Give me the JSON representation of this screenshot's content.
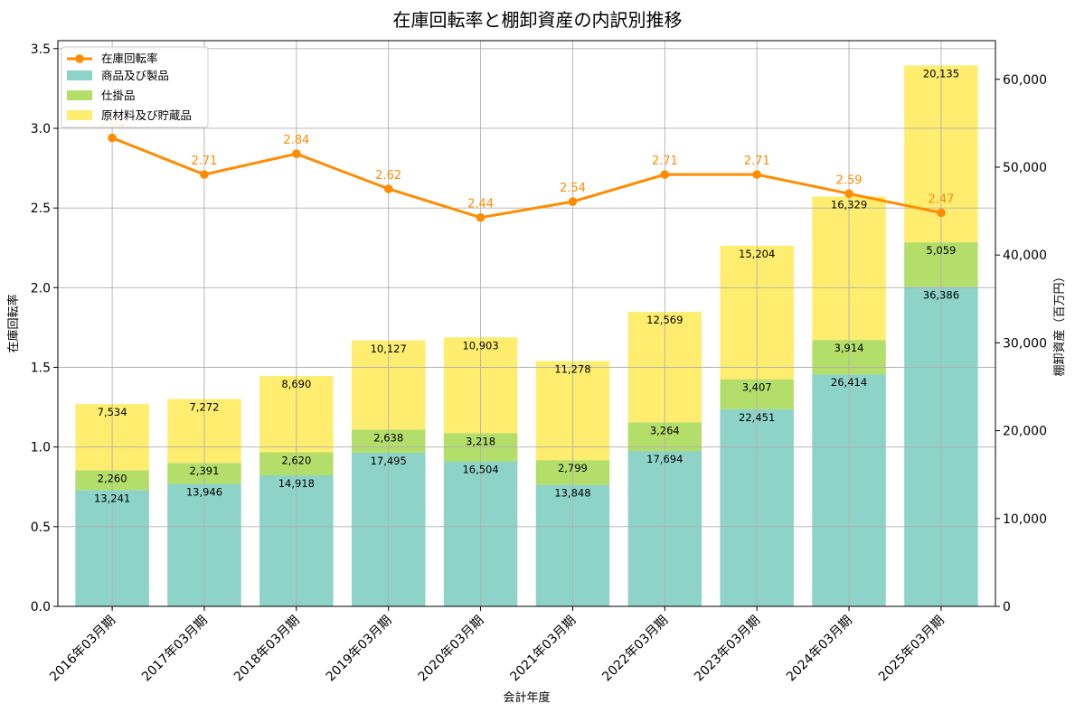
{
  "chart_data": {
    "type": "bar",
    "stacked": true,
    "title": "在庫回転率と棚卸資産の内訳別推移",
    "xlabel": "会計年度",
    "ylabel_left": "在庫回転率",
    "ylabel_right": "棚卸資産（百万円）",
    "categories": [
      "2016年03月期",
      "2017年03月期",
      "2018年03月期",
      "2019年03月期",
      "2020年03月期",
      "2021年03月期",
      "2022年03月期",
      "2023年03月期",
      "2024年03月期",
      "2025年03月期"
    ],
    "series": [
      {
        "name": "商品及び製品",
        "axis": "right",
        "color": "#8dd3c7",
        "values": [
          13241,
          13946,
          14918,
          17495,
          16504,
          13848,
          17694,
          22451,
          26414,
          36386
        ]
      },
      {
        "name": "仕掛品",
        "axis": "right",
        "color": "#b3de69",
        "values": [
          2260,
          2391,
          2620,
          2638,
          3218,
          2799,
          3264,
          3407,
          3914,
          5059
        ]
      },
      {
        "name": "原材料及び貯蔵品",
        "axis": "right",
        "color": "#ffed6f",
        "values": [
          7534,
          7272,
          8690,
          10127,
          10903,
          11278,
          12569,
          15204,
          16329,
          20135
        ]
      }
    ],
    "line": {
      "name": "在庫回転率",
      "axis": "left",
      "color": "#ff8c00",
      "values": [
        2.94,
        2.71,
        2.84,
        2.62,
        2.44,
        2.54,
        2.71,
        2.71,
        2.59,
        2.47
      ],
      "labels": [
        "2.94",
        "2.71",
        "2.84",
        "2.62",
        "2.44",
        "2.54",
        "2.71",
        "2.71",
        "2.59",
        "2.47"
      ]
    },
    "ylim_left": [
      0,
      3.55
    ],
    "yticks_left": [
      "0.0",
      "0.5",
      "1.0",
      "1.5",
      "2.0",
      "2.5",
      "3.0",
      "3.5"
    ],
    "ylim_right": [
      0,
      64400
    ],
    "yticks_right": [
      "0",
      "10,000",
      "20,000",
      "30,000",
      "40,000",
      "50,000",
      "60,000"
    ],
    "grid": true,
    "legend_position": "top-left"
  }
}
